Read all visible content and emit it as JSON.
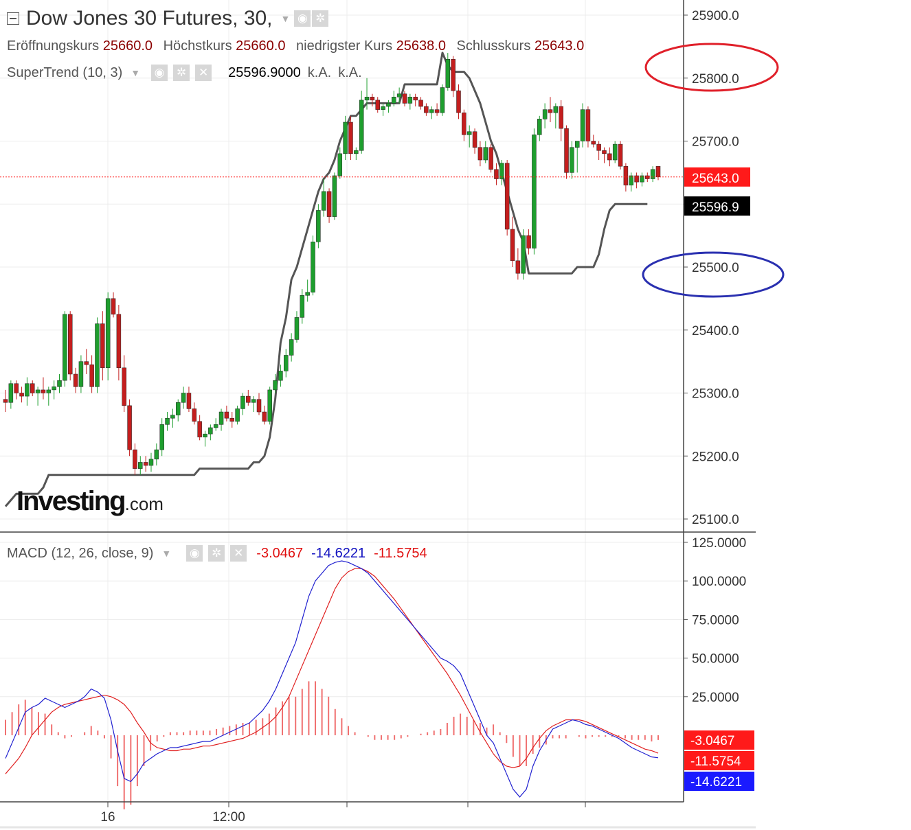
{
  "header": {
    "title": "Dow Jones 30 Futures, 30,",
    "ohlc": [
      {
        "label": "Eröffnungskurs",
        "value": "25660.0"
      },
      {
        "label": "Höchstkurs",
        "value": "25660.0"
      },
      {
        "label": "niedrigster Kurs",
        "value": "25638.0"
      },
      {
        "label": "Schlusskurs",
        "value": "25643.0"
      }
    ],
    "supertrend": {
      "label": "SuperTrend (10, 3)",
      "value": "25596.9000",
      "na1": "k.A.",
      "na2": "k.A."
    },
    "macd": {
      "label": "MACD (12, 26, close, 9)",
      "v1": "-3.0467",
      "v2": "-14.6221",
      "v3": "-11.5754"
    }
  },
  "logo": {
    "main": "Investing",
    "suffix": ".com"
  },
  "colors": {
    "bull": "#1e9e2e",
    "bear": "#c41e1e",
    "supertrend": "#555555",
    "macd_line": "#2020d0",
    "signal_line": "#e02020",
    "histogram": "#f07070",
    "last_price": "#ff1a1a",
    "ellipse_red": "#e0202a",
    "ellipse_blue": "#2a30b0"
  },
  "chart_data": [
    {
      "type": "candlestick",
      "title": "Dow Jones 30 Futures, 30",
      "ylim": [
        25070,
        25920
      ],
      "y_ticks": [
        "25900.0",
        "25800.0",
        "25700.0",
        "25600.0",
        "25500.0",
        "25400.0",
        "25300.0",
        "25200.0",
        "25100.0"
      ],
      "last_price_label": "25643.0",
      "last_price": 25643,
      "supertrend_label": "25596.9",
      "candles": [
        [
          25290,
          25305,
          25270,
          25285
        ],
        [
          25285,
          25320,
          25275,
          25315
        ],
        [
          25315,
          25320,
          25290,
          25300
        ],
        [
          25300,
          25310,
          25285,
          25295
        ],
        [
          25295,
          25325,
          25280,
          25315
        ],
        [
          25315,
          25320,
          25295,
          25300
        ],
        [
          25300,
          25310,
          25280,
          25305
        ],
        [
          25305,
          25325,
          25290,
          25300
        ],
        [
          25300,
          25310,
          25280,
          25305
        ],
        [
          25305,
          25320,
          25290,
          25310
        ],
        [
          25310,
          25330,
          25300,
          25320
        ],
        [
          25320,
          25430,
          25310,
          25425
        ],
        [
          25425,
          25430,
          25320,
          25330
        ],
        [
          25330,
          25340,
          25300,
          25310
        ],
        [
          25310,
          25360,
          25300,
          25350
        ],
        [
          25350,
          25370,
          25330,
          25345
        ],
        [
          25345,
          25360,
          25300,
          25310
        ],
        [
          25310,
          25420,
          25300,
          25410
        ],
        [
          25410,
          25430,
          25320,
          25340
        ],
        [
          25340,
          25460,
          25320,
          25450
        ],
        [
          25450,
          25460,
          25420,
          25425
        ],
        [
          25425,
          25440,
          25320,
          25340
        ],
        [
          25340,
          25360,
          25270,
          25280
        ],
        [
          25280,
          25290,
          25200,
          25210
        ],
        [
          25210,
          25220,
          25170,
          25180
        ],
        [
          25180,
          25200,
          25170,
          25190
        ],
        [
          25190,
          25200,
          25175,
          25185
        ],
        [
          25185,
          25205,
          25175,
          25195
        ],
        [
          25195,
          25220,
          25185,
          25210
        ],
        [
          25210,
          25260,
          25200,
          25250
        ],
        [
          25250,
          25270,
          25240,
          25260
        ],
        [
          25260,
          25275,
          25245,
          25265
        ],
        [
          25265,
          25290,
          25255,
          25285
        ],
        [
          25285,
          25310,
          25275,
          25300
        ],
        [
          25300,
          25310,
          25270,
          25275
        ],
        [
          25275,
          25285,
          25250,
          25255
        ],
        [
          25255,
          25265,
          25225,
          25230
        ],
        [
          25230,
          25240,
          25215,
          25235
        ],
        [
          25235,
          25250,
          25225,
          25245
        ],
        [
          25245,
          25260,
          25240,
          25250
        ],
        [
          25250,
          25275,
          25240,
          25270
        ],
        [
          25270,
          25280,
          25255,
          25260
        ],
        [
          25260,
          25270,
          25245,
          25255
        ],
        [
          25255,
          25280,
          25250,
          25275
        ],
        [
          25275,
          25300,
          25265,
          25295
        ],
        [
          25295,
          25305,
          25280,
          25285
        ],
        [
          25285,
          25295,
          25270,
          25290
        ],
        [
          25290,
          25300,
          25265,
          25270
        ],
        [
          25270,
          25280,
          25250,
          25255
        ],
        [
          25255,
          25310,
          25250,
          25305
        ],
        [
          25305,
          25330,
          25300,
          25320
        ],
        [
          25320,
          25345,
          25310,
          25335
        ],
        [
          25335,
          25370,
          25325,
          25360
        ],
        [
          25360,
          25395,
          25350,
          25385
        ],
        [
          25385,
          25430,
          25380,
          25420
        ],
        [
          25420,
          25465,
          25410,
          25455
        ],
        [
          25455,
          25480,
          25445,
          25460
        ],
        [
          25460,
          25550,
          25455,
          25540
        ],
        [
          25540,
          25600,
          25530,
          25590
        ],
        [
          25590,
          25640,
          25580,
          25620
        ],
        [
          25620,
          25625,
          25570,
          25580
        ],
        [
          25580,
          25650,
          25575,
          25645
        ],
        [
          25645,
          25690,
          25640,
          25680
        ],
        [
          25680,
          25740,
          25670,
          25730
        ],
        [
          25730,
          25740,
          25670,
          25680
        ],
        [
          25680,
          25690,
          25670,
          25685
        ],
        [
          25685,
          25780,
          25680,
          25765
        ],
        [
          25765,
          25800,
          25750,
          25770
        ],
        [
          25770,
          25775,
          25755,
          25765
        ],
        [
          25765,
          25770,
          25745,
          25750
        ],
        [
          25750,
          25760,
          25740,
          25755
        ],
        [
          25755,
          25765,
          25745,
          25760
        ],
        [
          25760,
          25780,
          25755,
          25770
        ],
        [
          25770,
          25785,
          25760,
          25775
        ],
        [
          25775,
          25780,
          25755,
          25760
        ],
        [
          25760,
          25775,
          25750,
          25770
        ],
        [
          25770,
          25775,
          25755,
          25765
        ],
        [
          25765,
          25770,
          25750,
          25755
        ],
        [
          25755,
          25760,
          25740,
          25745
        ],
        [
          25745,
          25755,
          25735,
          25750
        ],
        [
          25750,
          25760,
          25740,
          25745
        ],
        [
          25745,
          25790,
          25740,
          25785
        ],
        [
          25785,
          25840,
          25780,
          25830
        ],
        [
          25830,
          25835,
          25770,
          25780
        ],
        [
          25780,
          25790,
          25735,
          25745
        ],
        [
          25745,
          25750,
          25700,
          25710
        ],
        [
          25710,
          25725,
          25690,
          25715
        ],
        [
          25715,
          25720,
          25680,
          25690
        ],
        [
          25690,
          25700,
          25660,
          25670
        ],
        [
          25670,
          25700,
          25665,
          25690
        ],
        [
          25690,
          25695,
          25650,
          25655
        ],
        [
          25655,
          25665,
          25630,
          25640
        ],
        [
          25640,
          25670,
          25630,
          25665
        ],
        [
          25665,
          25670,
          25550,
          25560
        ],
        [
          25560,
          25580,
          25500,
          25510
        ],
        [
          25510,
          25530,
          25480,
          25490
        ],
        [
          25490,
          25560,
          25480,
          25550
        ],
        [
          25550,
          25560,
          25520,
          25530
        ],
        [
          25530,
          25720,
          25520,
          25710
        ],
        [
          25710,
          25740,
          25700,
          25735
        ],
        [
          25735,
          25760,
          25720,
          25750
        ],
        [
          25750,
          25770,
          25730,
          25745
        ],
        [
          25745,
          25760,
          25720,
          25755
        ],
        [
          25755,
          25765,
          25700,
          25720
        ],
        [
          25720,
          25725,
          25640,
          25650
        ],
        [
          25650,
          25700,
          25640,
          25690
        ],
        [
          25690,
          25700,
          25650,
          25700
        ],
        [
          25700,
          25760,
          25690,
          25750
        ],
        [
          25750,
          25755,
          25690,
          25700
        ],
        [
          25700,
          25710,
          25690,
          25695
        ],
        [
          25695,
          25700,
          25670,
          25685
        ],
        [
          25685,
          25690,
          25665,
          25680
        ],
        [
          25680,
          25690,
          25660,
          25670
        ],
        [
          25670,
          25700,
          25665,
          25695
        ],
        [
          25695,
          25700,
          25655,
          25660
        ],
        [
          25660,
          25665,
          25620,
          25630
        ],
        [
          25630,
          25650,
          25620,
          25645
        ],
        [
          25645,
          25650,
          25625,
          25635
        ],
        [
          25635,
          25650,
          25628,
          25645
        ],
        [
          25645,
          25650,
          25635,
          25640
        ],
        [
          25640,
          25660,
          25635,
          25655
        ],
        [
          25660,
          25660,
          25638,
          25643
        ]
      ],
      "supertrend": [
        25120,
        25130,
        25140,
        25140,
        25140,
        25140,
        25140,
        25150,
        25170,
        25170,
        25170,
        25170,
        25170,
        25170,
        25170,
        25170,
        25170,
        25170,
        25170,
        25170,
        25170,
        25170,
        25170,
        25170,
        25170,
        25170,
        25170,
        25170,
        25170,
        25170,
        25170,
        25170,
        25170,
        25170,
        25170,
        25170,
        25180,
        25180,
        25180,
        25180,
        25180,
        25180,
        25180,
        25180,
        25180,
        25180,
        25190,
        25190,
        25200,
        25230,
        25290,
        25380,
        25420,
        25480,
        25500,
        25530,
        25560,
        25590,
        25620,
        25640,
        25650,
        25670,
        25700,
        25720,
        25740,
        25740,
        25750,
        25760,
        25760,
        25760,
        25760,
        25760,
        25760,
        25760,
        25790,
        25790,
        25790,
        25790,
        25790,
        25790,
        25790,
        25840,
        25820,
        25810,
        25810,
        25810,
        25800,
        25780,
        25760,
        25730,
        25700,
        25680,
        25650,
        25620,
        25590,
        25560,
        25540,
        25490,
        25490,
        25490,
        25490,
        25490,
        25490,
        25490,
        25490,
        25490,
        25500,
        25500,
        25500,
        25500,
        25520,
        25560,
        25590,
        25600,
        25600,
        25600,
        25600,
        25600,
        25600,
        25600
      ]
    },
    {
      "type": "macd",
      "title": "MACD (12, 26, close, 9)",
      "ylim": [
        -45,
        128
      ],
      "y_ticks": [
        "125.0000",
        "100.0000",
        "75.0000",
        "50.0000",
        "25.0000"
      ],
      "last_values": {
        "histogram": "-3.0467",
        "macd": "-14.6221",
        "signal": "-11.5754"
      },
      "x_tick_labels": [
        "16",
        "12:00"
      ],
      "macd": [
        -15,
        -5,
        5,
        15,
        18,
        20,
        24,
        22,
        20,
        18,
        20,
        22,
        25,
        30,
        28,
        24,
        10,
        -10,
        -28,
        -30,
        -25,
        -18,
        -15,
        -12,
        -10,
        -8,
        -8,
        -7,
        -6,
        -5,
        -4,
        -4,
        -2,
        0,
        2,
        4,
        6,
        8,
        12,
        16,
        22,
        30,
        40,
        50,
        60,
        75,
        90,
        100,
        105,
        110,
        112,
        113,
        112,
        110,
        108,
        105,
        100,
        95,
        90,
        85,
        80,
        75,
        70,
        65,
        60,
        55,
        50,
        48,
        45,
        40,
        30,
        20,
        10,
        0,
        -5,
        -15,
        -25,
        -35,
        -40,
        -35,
        -20,
        -10,
        -3,
        4,
        6,
        8,
        10,
        9,
        7,
        6,
        4,
        2,
        0,
        -2,
        -5,
        -8,
        -10,
        -12,
        -14,
        -14.6
      ],
      "signal": [
        -25,
        -20,
        -15,
        -8,
        0,
        5,
        10,
        15,
        18,
        20,
        21,
        22,
        23,
        24,
        25,
        26,
        25,
        23,
        20,
        15,
        8,
        2,
        -5,
        -8,
        -9,
        -10,
        -10,
        -9,
        -9,
        -8,
        -7,
        -7,
        -6,
        -5,
        -4,
        -3,
        -2,
        0,
        2,
        5,
        8,
        12,
        18,
        25,
        35,
        45,
        55,
        65,
        75,
        85,
        95,
        102,
        106,
        108,
        108,
        106,
        103,
        98,
        93,
        88,
        82,
        76,
        70,
        64,
        58,
        52,
        46,
        40,
        33,
        26,
        18,
        10,
        2,
        -5,
        -12,
        -17,
        -20,
        -21,
        -20,
        -15,
        -8,
        -2,
        3,
        6,
        8,
        10,
        10,
        10,
        9,
        7,
        5,
        3,
        1,
        -1,
        -3,
        -5,
        -7,
        -9,
        -10,
        -11.6
      ],
      "histogram": [
        10,
        15,
        20,
        23,
        18,
        15,
        14,
        7,
        2,
        -2,
        -1,
        0,
        2,
        6,
        3,
        -2,
        -15,
        -33,
        -48,
        -45,
        -33,
        -20,
        -10,
        -4,
        -1,
        2,
        2,
        2,
        3,
        3,
        3,
        3,
        4,
        5,
        6,
        7,
        8,
        8,
        10,
        11,
        14,
        18,
        22,
        25,
        25,
        30,
        35,
        35,
        30,
        25,
        17,
        11,
        6,
        2,
        0,
        -1,
        -3,
        -3,
        -3,
        -3,
        -2,
        -1,
        0,
        1,
        2,
        3,
        4,
        8,
        12,
        14,
        12,
        10,
        8,
        5,
        7,
        2,
        -5,
        -14,
        -20,
        -20,
        -12,
        -8,
        -6,
        -2,
        -2,
        -2,
        0,
        -1,
        -2,
        -1,
        -1,
        -1,
        -1,
        -1,
        -2,
        -3,
        -3,
        -3,
        -4,
        -3.05
      ]
    }
  ]
}
